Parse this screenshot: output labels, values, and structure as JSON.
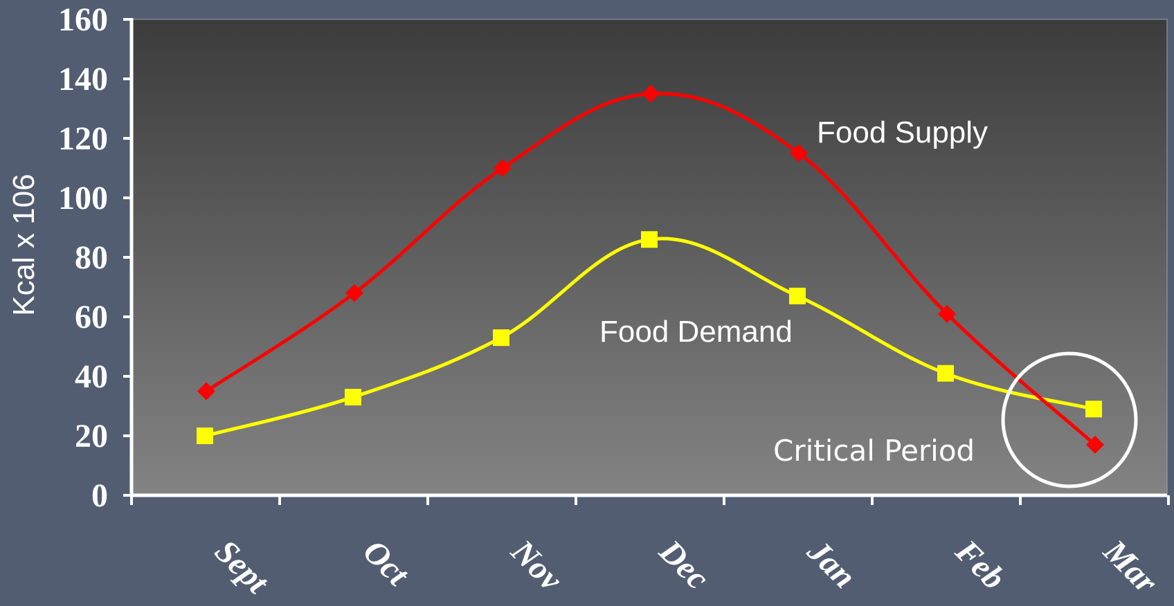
{
  "chart_data": {
    "type": "line",
    "title": "",
    "xlabel": "",
    "ylabel": "Kcal x 106",
    "categories": [
      "Sept",
      "Oct",
      "Nov",
      "Dec",
      "Jan",
      "Feb",
      "Mar"
    ],
    "ylim": [
      0,
      160
    ],
    "yticks": [
      "0",
      "20",
      "40",
      "60",
      "80",
      "100",
      "120",
      "140",
      "160"
    ],
    "grid": false,
    "legend": "none",
    "background": "dark gray gradient",
    "series": [
      {
        "key": "supply",
        "color": "#ff0000",
        "marker": "diamond",
        "values": [
          35,
          68,
          110,
          135,
          115,
          61,
          17
        ]
      },
      {
        "key": "demand",
        "color": "#ffff00",
        "marker": "square",
        "values": [
          20,
          33,
          53,
          86,
          67,
          41,
          29
        ]
      }
    ],
    "annotations": {
      "food_supply": "Food Supply",
      "food_demand": "Food Demand",
      "critical_period": "Critical Period"
    }
  }
}
